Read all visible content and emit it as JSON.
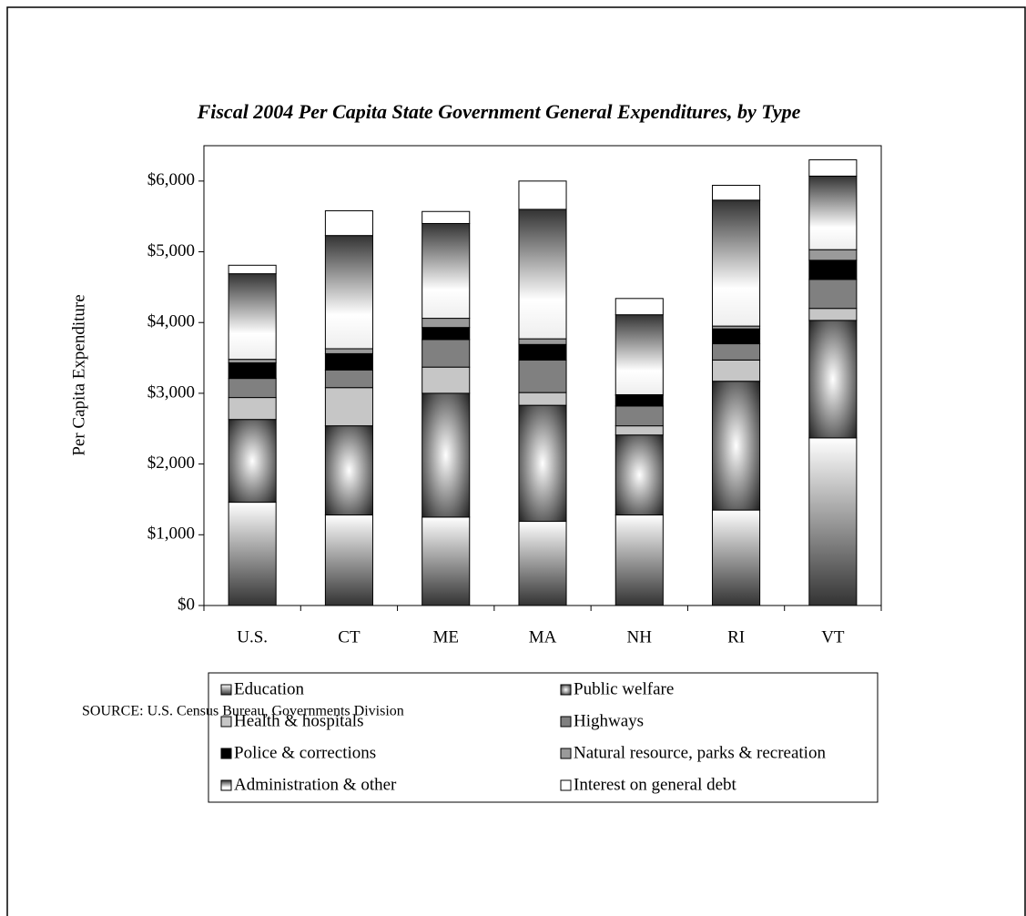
{
  "chart_data": {
    "type": "stacked-bar",
    "title": "Fiscal 2004 Per Capita State Government General Expenditures, by Type",
    "y_label": "Per Capita Expenditure",
    "source": "SOURCE:  U.S. Census Bureau, Governments Division",
    "categories": [
      "U.S.",
      "CT",
      "ME",
      "MA",
      "NH",
      "RI",
      "VT"
    ],
    "ylim": [
      0,
      6500
    ],
    "yticks": [
      {
        "value": 0,
        "label": "$0"
      },
      {
        "value": 1000,
        "label": "$1,000"
      },
      {
        "value": 2000,
        "label": "$2,000"
      },
      {
        "value": 3000,
        "label": "$3,000"
      },
      {
        "value": 4000,
        "label": "$4,000"
      },
      {
        "value": 5000,
        "label": "$5,000"
      },
      {
        "value": 6000,
        "label": "$6,000"
      }
    ],
    "grid": false,
    "series": [
      {
        "name": "Education",
        "color": "#6e6e6e",
        "values": [
          1460,
          1280,
          1250,
          1190,
          1280,
          1350,
          2370
        ]
      },
      {
        "name": "Public welfare",
        "color": "#8c8c8c",
        "values": [
          1170,
          1260,
          1750,
          1640,
          1130,
          1820,
          1660
        ]
      },
      {
        "name": "Health & hospitals",
        "color": "#c6c6c6",
        "values": [
          310,
          540,
          370,
          180,
          130,
          300,
          170
        ]
      },
      {
        "name": "Highways",
        "color": "#808080",
        "values": [
          270,
          250,
          390,
          460,
          280,
          230,
          410
        ]
      },
      {
        "name": "Police & corrections",
        "color": "#000000",
        "values": [
          220,
          230,
          170,
          220,
          150,
          210,
          270
        ]
      },
      {
        "name": "Natural resource, parks & recreation",
        "color": "#9a9a9a",
        "values": [
          50,
          70,
          130,
          80,
          10,
          40,
          150
        ]
      },
      {
        "name": "Administration & other",
        "color": "#a8a8a8",
        "values": [
          1210,
          1600,
          1340,
          1830,
          1130,
          1780,
          1040
        ]
      },
      {
        "name": "Interest on general debt",
        "color": "#ffffff",
        "values": [
          120,
          350,
          170,
          400,
          230,
          210,
          230
        ]
      }
    ]
  }
}
